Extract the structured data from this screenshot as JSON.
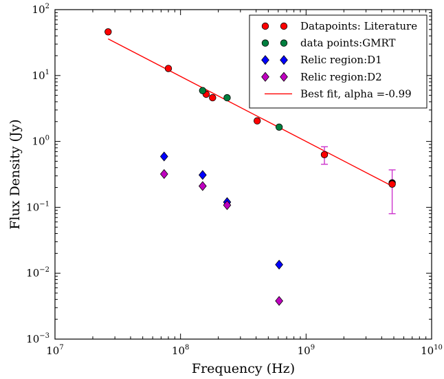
{
  "chart_data": {
    "type": "scatter",
    "xlabel": "Frequency (Hz)",
    "ylabel": "Flux Density (Jy)",
    "xscale": "log",
    "yscale": "log",
    "xlim": [
      10000000,
      10000000000
    ],
    "ylim": [
      0.001,
      100
    ],
    "x_ticks": [
      {
        "value": 10000000,
        "base": "10",
        "exp": "7"
      },
      {
        "value": 100000000,
        "base": "10",
        "exp": "8"
      },
      {
        "value": 1000000000,
        "base": "10",
        "exp": "9"
      },
      {
        "value": 10000000000,
        "base": "10",
        "exp": "10"
      }
    ],
    "y_ticks": [
      {
        "value": 0.001,
        "base": "10",
        "exp": "−3"
      },
      {
        "value": 0.01,
        "base": "10",
        "exp": "−2"
      },
      {
        "value": 0.1,
        "base": "10",
        "exp": "−1"
      },
      {
        "value": 1,
        "base": "10",
        "exp": "0"
      },
      {
        "value": 10,
        "base": "10",
        "exp": "1"
      },
      {
        "value": 100,
        "base": "10",
        "exp": "2"
      }
    ],
    "legend_position": "top-right",
    "series": [
      {
        "name": "Datapoints: Literature",
        "marker": "circle",
        "color": "#ff0000",
        "points": [
          {
            "x": 26500000,
            "y": 46.0
          },
          {
            "x": 80000000,
            "y": 12.8
          },
          {
            "x": 160000000,
            "y": 5.2
          },
          {
            "x": 180000000,
            "y": 4.6
          },
          {
            "x": 408000000,
            "y": 2.05
          },
          {
            "x": 1400000000,
            "y": 0.63,
            "err_lo": 0.45,
            "err_hi": 0.83
          },
          {
            "x": 4850000000,
            "y": 0.225,
            "err_lo": 0.08,
            "err_hi": 0.37
          }
        ]
      },
      {
        "name": "data points:GMRT",
        "marker": "circle",
        "color": "#007f3f",
        "points": [
          {
            "x": 150000000,
            "y": 5.9
          },
          {
            "x": 235000000,
            "y": 4.6
          },
          {
            "x": 610000000,
            "y": 1.65
          }
        ]
      },
      {
        "name": "Relic region:D1",
        "marker": "diamond",
        "color": "#0000ff",
        "points": [
          {
            "x": 74000000,
            "y": 0.59
          },
          {
            "x": 150000000,
            "y": 0.31
          },
          {
            "x": 235000000,
            "y": 0.12
          },
          {
            "x": 610000000,
            "y": 0.0135
          }
        ]
      },
      {
        "name": "Relic region:D2",
        "marker": "diamond",
        "color": "#bf00bf",
        "points": [
          {
            "x": 74000000,
            "y": 0.32
          },
          {
            "x": 150000000,
            "y": 0.21
          },
          {
            "x": 235000000,
            "y": 0.108
          },
          {
            "x": 610000000,
            "y": 0.0038
          }
        ]
      }
    ],
    "fit": {
      "name": "Best fit, alpha =-0.99",
      "color": "#ff0000",
      "x": [
        26500000,
        4850000000
      ],
      "y": [
        36.0,
        0.21
      ]
    },
    "extra_points": [
      {
        "x": 4850000000,
        "y": 0.235,
        "color": "#000000",
        "marker": "circle"
      }
    ]
  }
}
